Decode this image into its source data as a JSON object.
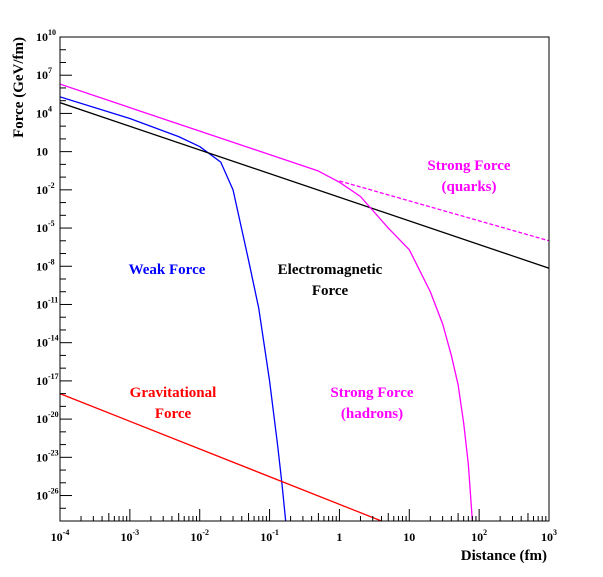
{
  "chart_data": {
    "type": "line",
    "xlabel": "Distance (fm)",
    "ylabel": "Force (GeV/fm)",
    "xscale": "log",
    "yscale": "log",
    "xlim": [
      0.0001,
      1000
    ],
    "ylim": [
      1e-28,
      10000000000.0
    ],
    "grid": false,
    "x_ticks": [
      {
        "base": "10",
        "exp": "-4",
        "value": 0.0001
      },
      {
        "base": "10",
        "exp": "-3",
        "value": 0.001
      },
      {
        "base": "10",
        "exp": "-2",
        "value": 0.01
      },
      {
        "base": "10",
        "exp": "-1",
        "value": 0.1
      },
      {
        "base": "1",
        "exp": "",
        "value": 1
      },
      {
        "base": "10",
        "exp": "",
        "value": 10
      },
      {
        "base": "10",
        "exp": "2",
        "value": 100
      },
      {
        "base": "10",
        "exp": "3",
        "value": 1000
      }
    ],
    "y_ticks": [
      {
        "base": "10",
        "exp": "10",
        "value": 10000000000.0
      },
      {
        "base": "10",
        "exp": "7",
        "value": 10000000.0
      },
      {
        "base": "10",
        "exp": "4",
        "value": 10000.0
      },
      {
        "base": "10",
        "exp": "",
        "value": 10
      },
      {
        "base": "10",
        "exp": "-2",
        "value": 0.01
      },
      {
        "base": "10",
        "exp": "-5",
        "value": 1e-05
      },
      {
        "base": "10",
        "exp": "-8",
        "value": 1e-08
      },
      {
        "base": "10",
        "exp": "-11",
        "value": 1e-11
      },
      {
        "base": "10",
        "exp": "-14",
        "value": 1e-14
      },
      {
        "base": "10",
        "exp": "-17",
        "value": 1e-17
      },
      {
        "base": "10",
        "exp": "-20",
        "value": 1e-20
      },
      {
        "base": "10",
        "exp": "-23",
        "value": 1e-23
      },
      {
        "base": "10",
        "exp": "-26",
        "value": 1e-26
      }
    ],
    "series": [
      {
        "key": "weak",
        "color": "#0000ff",
        "points": [
          [
            0.0001,
            200000
          ],
          [
            0.001,
            4000
          ],
          [
            0.005,
            150
          ],
          [
            0.01,
            25
          ],
          [
            0.02,
            1.5
          ],
          [
            0.03,
            0.01
          ],
          [
            0.05,
            3e-08
          ],
          [
            0.07,
            5e-12
          ],
          [
            0.1,
            1e-17
          ],
          [
            0.13,
            1e-22
          ],
          [
            0.15,
            1e-25
          ],
          [
            0.17,
            1e-28
          ]
        ]
      },
      {
        "key": "electromagnetic",
        "color": "#000000",
        "points": [
          [
            0.0001,
            70000
          ],
          [
            1000,
            7e-09
          ]
        ]
      },
      {
        "key": "strong-hadrons",
        "color": "#ff00ff",
        "points": [
          [
            0.0001,
            2000000
          ],
          [
            0.5,
            0.3
          ],
          [
            1,
            0.04
          ],
          [
            2,
            0.003
          ],
          [
            5,
            1e-05
          ],
          [
            10,
            2e-07
          ],
          [
            20,
            1e-10
          ],
          [
            30,
            3e-13
          ],
          [
            40,
            1e-15
          ],
          [
            50,
            5e-18
          ],
          [
            60,
            5e-21
          ],
          [
            70,
            3e-24
          ],
          [
            80,
            1e-28
          ]
        ]
      },
      {
        "key": "strong-quarks",
        "color": "#ff00ff",
        "dashed": true,
        "points": [
          [
            1,
            0.05
          ],
          [
            1000,
            1e-06
          ]
        ]
      },
      {
        "key": "gravitational",
        "color": "#ff0000",
        "points": [
          [
            0.0001,
            1e-18
          ],
          [
            4,
            1e-28
          ]
        ]
      }
    ],
    "annotations": [
      {
        "key": "weak",
        "lines": [
          "Weak Force"
        ],
        "color": "#0000ff"
      },
      {
        "key": "electromagnetic",
        "lines": [
          "Electromagnetic",
          "Force"
        ],
        "color": "#000000"
      },
      {
        "key": "strong-quarks",
        "lines": [
          "Strong Force",
          "(quarks)"
        ],
        "color": "#ff00ff"
      },
      {
        "key": "strong-hadrons",
        "lines": [
          "Strong Force",
          "(hadrons)"
        ],
        "color": "#ff00ff"
      },
      {
        "key": "gravitational",
        "lines": [
          "Gravitational",
          "Force"
        ],
        "color": "#ff0000"
      }
    ]
  }
}
